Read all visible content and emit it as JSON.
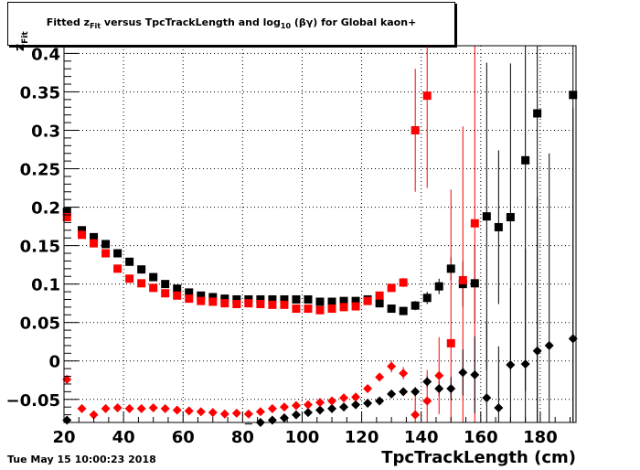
{
  "chart_data": {
    "type": "scatter",
    "title_pre": "Fitted  z",
    "title_sub": "Fit",
    "title_post": "  versus TpcTrackLength and log",
    "title_sub2": "10",
    "title_end": " (βγ) for Global kaon+",
    "xlabel": "TpcTrackLength (cm)",
    "ylabel_main": "z",
    "ylabel_sub": "Fit",
    "timestamp": "Tue May 15 10:00:23 2018",
    "xlim": [
      20,
      192
    ],
    "ylim": [
      -0.08,
      0.41
    ],
    "xticks": [
      20,
      40,
      60,
      80,
      100,
      120,
      140,
      160,
      180
    ],
    "xtick_labels": [
      "20",
      "40",
      "60",
      "80",
      "100",
      "120",
      "140",
      "160",
      "180"
    ],
    "yticks": [
      -0.05,
      0,
      0.05,
      0.1,
      0.15,
      0.2,
      0.25,
      0.3,
      0.35,
      0.4
    ],
    "ytick_labels": [
      "−0.05",
      "0",
      "0.05",
      "0.1",
      "0.15",
      "0.2",
      "0.25",
      "0.3",
      "0.35",
      "0.4"
    ],
    "grid": true,
    "colors": {
      "black": "#000000",
      "red": "#ff0000"
    },
    "series": [
      {
        "marker": "square",
        "color": "#000000",
        "points": [
          [
            21,
            0.194,
            0.004
          ],
          [
            26,
            0.17,
            0.003
          ],
          [
            30,
            0.161,
            0.003
          ],
          [
            34,
            0.152,
            0.003
          ],
          [
            38,
            0.14,
            0.003
          ],
          [
            42,
            0.129,
            0.003
          ],
          [
            46,
            0.119,
            0.003
          ],
          [
            50,
            0.109,
            0.003
          ],
          [
            54,
            0.1,
            0.003
          ],
          [
            58,
            0.094,
            0.003
          ],
          [
            62,
            0.089,
            0.003
          ],
          [
            66,
            0.085,
            0.003
          ],
          [
            70,
            0.083,
            0.003
          ],
          [
            74,
            0.081,
            0.003
          ],
          [
            78,
            0.08,
            0.003
          ],
          [
            82,
            0.08,
            0.003
          ],
          [
            86,
            0.08,
            0.003
          ],
          [
            90,
            0.08,
            0.003
          ],
          [
            94,
            0.08,
            0.003
          ],
          [
            98,
            0.08,
            0.003
          ],
          [
            102,
            0.08,
            0.003
          ],
          [
            106,
            0.077,
            0.003
          ],
          [
            110,
            0.077,
            0.003
          ],
          [
            114,
            0.078,
            0.003
          ],
          [
            118,
            0.078,
            0.003
          ],
          [
            122,
            0.08,
            0.003
          ],
          [
            126,
            0.075,
            0.004
          ],
          [
            130,
            0.068,
            0.004
          ],
          [
            134,
            0.065,
            0.005
          ],
          [
            138,
            0.072,
            0.006
          ],
          [
            142,
            0.082,
            0.008
          ],
          [
            146,
            0.097,
            0.01
          ],
          [
            150,
            0.12,
            0.015
          ],
          [
            154,
            0.1,
            0.03
          ],
          [
            158,
            0.101,
            0.05
          ],
          [
            162,
            0.188,
            0.2
          ],
          [
            166,
            0.174,
            0.1
          ],
          [
            170,
            0.187,
            0.2
          ],
          [
            175,
            0.261,
            0.3
          ],
          [
            179,
            0.322,
            0.5
          ],
          [
            191,
            0.346,
            0.6
          ]
        ]
      },
      {
        "marker": "square",
        "color": "#ff0000",
        "points": [
          [
            21,
            0.187,
            0.004
          ],
          [
            26,
            0.164,
            0.003
          ],
          [
            30,
            0.153,
            0.003
          ],
          [
            34,
            0.14,
            0.003
          ],
          [
            38,
            0.12,
            0.003
          ],
          [
            42,
            0.107,
            0.003
          ],
          [
            46,
            0.101,
            0.003
          ],
          [
            50,
            0.095,
            0.003
          ],
          [
            54,
            0.088,
            0.003
          ],
          [
            58,
            0.085,
            0.003
          ],
          [
            62,
            0.081,
            0.003
          ],
          [
            66,
            0.078,
            0.003
          ],
          [
            70,
            0.077,
            0.003
          ],
          [
            74,
            0.075,
            0.003
          ],
          [
            78,
            0.074,
            0.003
          ],
          [
            82,
            0.075,
            0.003
          ],
          [
            86,
            0.074,
            0.003
          ],
          [
            90,
            0.073,
            0.003
          ],
          [
            94,
            0.073,
            0.003
          ],
          [
            98,
            0.068,
            0.003
          ],
          [
            102,
            0.068,
            0.003
          ],
          [
            106,
            0.066,
            0.003
          ],
          [
            110,
            0.068,
            0.003
          ],
          [
            114,
            0.07,
            0.003
          ],
          [
            118,
            0.071,
            0.003
          ],
          [
            122,
            0.078,
            0.004
          ],
          [
            126,
            0.085,
            0.004
          ],
          [
            130,
            0.095,
            0.005
          ],
          [
            134,
            0.102,
            0.006
          ],
          [
            138,
            0.3,
            0.08
          ],
          [
            142,
            0.345,
            0.12
          ],
          [
            150,
            0.023,
            0.2
          ],
          [
            154,
            0.105,
            0.2
          ],
          [
            158,
            0.179,
            0.3
          ]
        ]
      },
      {
        "marker": "diamond",
        "color": "#000000",
        "points": [
          [
            21,
            -0.077,
            0.004
          ],
          [
            82,
            -0.082,
            0.003
          ],
          [
            86,
            -0.08,
            0.003
          ],
          [
            90,
            -0.077,
            0.003
          ],
          [
            94,
            -0.074,
            0.003
          ],
          [
            98,
            -0.07,
            0.003
          ],
          [
            102,
            -0.067,
            0.003
          ],
          [
            106,
            -0.064,
            0.003
          ],
          [
            110,
            -0.062,
            0.003
          ],
          [
            114,
            -0.06,
            0.003
          ],
          [
            118,
            -0.057,
            0.003
          ],
          [
            122,
            -0.055,
            0.003
          ],
          [
            126,
            -0.052,
            0.003
          ],
          [
            130,
            -0.043,
            0.004
          ],
          [
            134,
            -0.04,
            0.005
          ],
          [
            138,
            -0.04,
            0.006
          ],
          [
            142,
            -0.027,
            0.008
          ],
          [
            146,
            -0.036,
            0.01
          ],
          [
            150,
            -0.036,
            0.015
          ],
          [
            154,
            -0.015,
            0.03
          ],
          [
            158,
            -0.018,
            0.05
          ],
          [
            162,
            -0.048,
            0.1
          ],
          [
            166,
            -0.061,
            0.08
          ],
          [
            170,
            -0.005,
            0.1
          ],
          [
            175,
            -0.004,
            0.15
          ],
          [
            179,
            0.013,
            0.2
          ],
          [
            183,
            0.02,
            0.25
          ],
          [
            191,
            0.029,
            0.3
          ]
        ]
      },
      {
        "marker": "diamond",
        "color": "#ff0000",
        "points": [
          [
            21,
            -0.024,
            0.004
          ],
          [
            26,
            -0.062,
            0.003
          ],
          [
            30,
            -0.07,
            0.003
          ],
          [
            34,
            -0.062,
            0.003
          ],
          [
            38,
            -0.061,
            0.003
          ],
          [
            42,
            -0.062,
            0.003
          ],
          [
            46,
            -0.062,
            0.003
          ],
          [
            50,
            -0.061,
            0.003
          ],
          [
            54,
            -0.062,
            0.003
          ],
          [
            58,
            -0.064,
            0.003
          ],
          [
            62,
            -0.065,
            0.003
          ],
          [
            66,
            -0.066,
            0.003
          ],
          [
            70,
            -0.067,
            0.003
          ],
          [
            74,
            -0.069,
            0.003
          ],
          [
            78,
            -0.068,
            0.003
          ],
          [
            82,
            -0.069,
            0.003
          ],
          [
            86,
            -0.066,
            0.003
          ],
          [
            90,
            -0.062,
            0.003
          ],
          [
            94,
            -0.06,
            0.003
          ],
          [
            98,
            -0.058,
            0.003
          ],
          [
            102,
            -0.057,
            0.003
          ],
          [
            106,
            -0.054,
            0.003
          ],
          [
            110,
            -0.052,
            0.003
          ],
          [
            114,
            -0.048,
            0.003
          ],
          [
            118,
            -0.047,
            0.003
          ],
          [
            122,
            -0.036,
            0.004
          ],
          [
            126,
            -0.021,
            0.005
          ],
          [
            130,
            -0.007,
            0.008
          ],
          [
            134,
            -0.016,
            0.008
          ],
          [
            138,
            -0.07,
            0.03
          ],
          [
            142,
            -0.052,
            0.04
          ],
          [
            146,
            -0.019,
            0.05
          ]
        ]
      }
    ]
  }
}
